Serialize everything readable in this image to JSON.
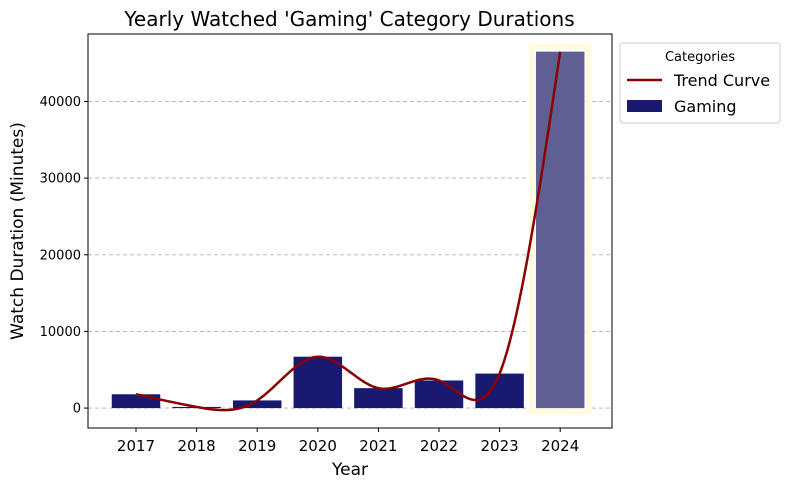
{
  "chart_data": {
    "type": "bar",
    "title": "Yearly Watched 'Gaming' Category Durations",
    "xlabel": "Year",
    "ylabel": "Watch Duration (Minutes)",
    "categories": [
      "2017",
      "2018",
      "2019",
      "2020",
      "2021",
      "2022",
      "2023",
      "2024"
    ],
    "series": [
      {
        "name": "Gaming",
        "values": [
          1800,
          150,
          1000,
          6700,
          2600,
          3600,
          4500,
          46500
        ],
        "color": "#191970"
      }
    ],
    "highlight": {
      "category": "2024",
      "color": "#5e5f92",
      "glow": "#fffbe0"
    },
    "trend": {
      "name": "Trend Curve",
      "values": [
        1800,
        150,
        1000,
        6700,
        2600,
        3600,
        4500,
        46500
      ],
      "color": "#8b0000"
    },
    "yticks": [
      0,
      10000,
      20000,
      30000,
      40000
    ],
    "ylim": [
      -2600,
      48800
    ],
    "grid": "y-dashed",
    "legend": {
      "title": "Categories",
      "placement": "outside-upper-right"
    }
  }
}
